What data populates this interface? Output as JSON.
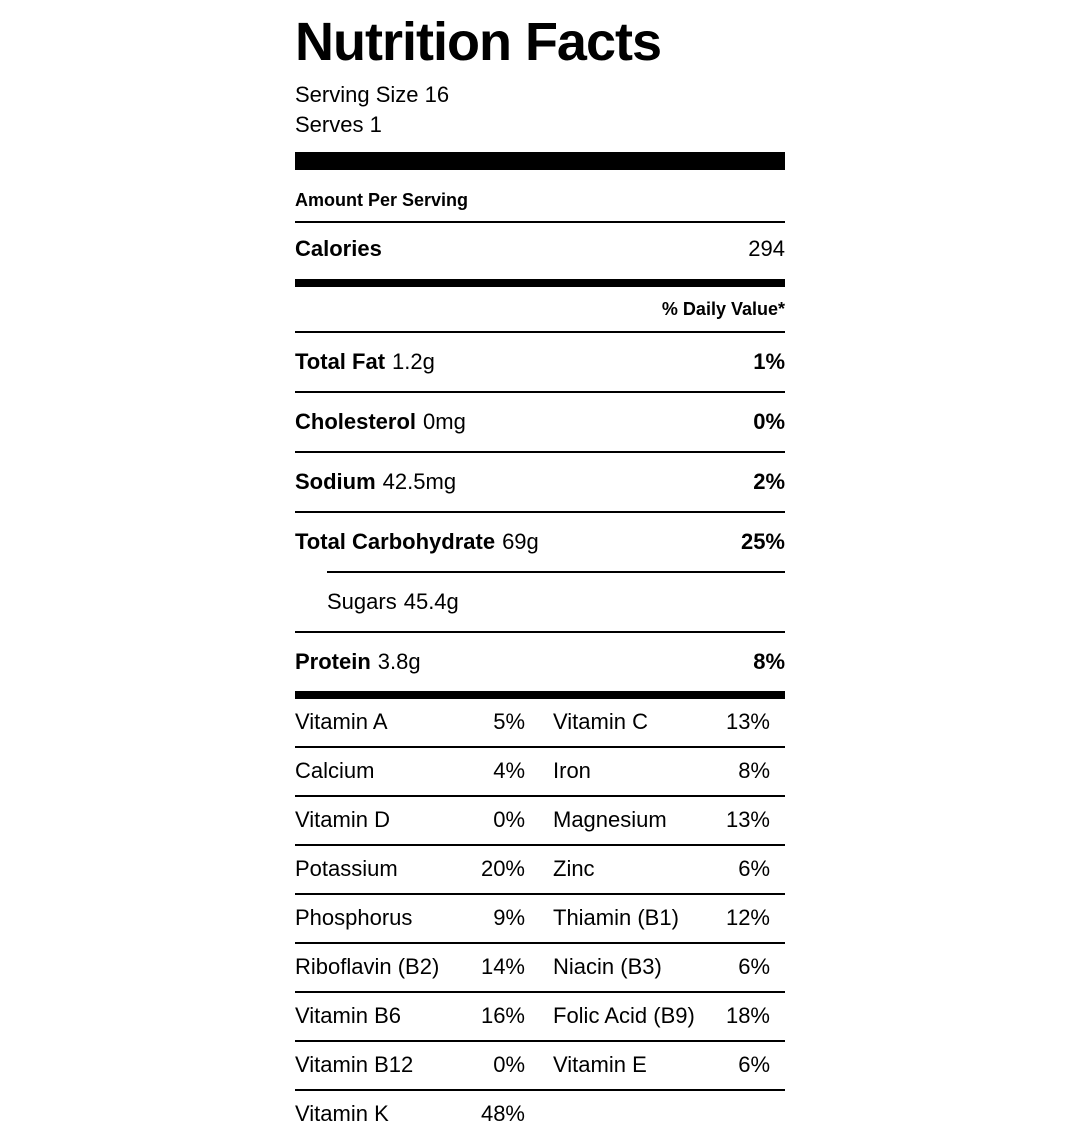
{
  "colors": {
    "text": "#000000",
    "background": "#ffffff"
  },
  "label": {
    "title": "Nutrition Facts",
    "serving_size": "Serving Size 16",
    "serves": "Serves 1",
    "amount_per_serving": "Amount Per Serving",
    "calories_label": "Calories",
    "calories_value": "294",
    "daily_value_header": "% Daily Value*",
    "nutrients": [
      {
        "name": "Total Fat",
        "amount": "1.2g",
        "dv": "1%"
      },
      {
        "name": "Cholesterol",
        "amount": "0mg",
        "dv": "0%"
      },
      {
        "name": "Sodium",
        "amount": "42.5mg",
        "dv": "2%"
      },
      {
        "name": "Total Carbohydrate",
        "amount": "69g",
        "dv": "25%"
      },
      {
        "name": "Sugars",
        "amount": "45.4g",
        "dv": ""
      },
      {
        "name": "Protein",
        "amount": "3.8g",
        "dv": "8%"
      }
    ],
    "vitamin_rows": [
      {
        "left_name": "Vitamin A",
        "left_dv": "5%",
        "right_name": "Vitamin C",
        "right_dv": "13%"
      },
      {
        "left_name": "Calcium",
        "left_dv": "4%",
        "right_name": "Iron",
        "right_dv": "8%"
      },
      {
        "left_name": "Vitamin D",
        "left_dv": "0%",
        "right_name": "Magnesium",
        "right_dv": "13%"
      },
      {
        "left_name": "Potassium",
        "left_dv": "20%",
        "right_name": "Zinc",
        "right_dv": "6%"
      },
      {
        "left_name": "Phosphorus",
        "left_dv": "9%",
        "right_name": "Thiamin (B1)",
        "right_dv": "12%"
      },
      {
        "left_name": "Riboflavin (B2)",
        "left_dv": "14%",
        "right_name": "Niacin (B3)",
        "right_dv": "6%"
      },
      {
        "left_name": "Vitamin B6",
        "left_dv": "16%",
        "right_name": "Folic Acid (B9)",
        "right_dv": "18%"
      },
      {
        "left_name": "Vitamin B12",
        "left_dv": "0%",
        "right_name": "Vitamin E",
        "right_dv": "6%"
      },
      {
        "left_name": "Vitamin K",
        "left_dv": "48%",
        "right_name": "",
        "right_dv": ""
      }
    ]
  }
}
